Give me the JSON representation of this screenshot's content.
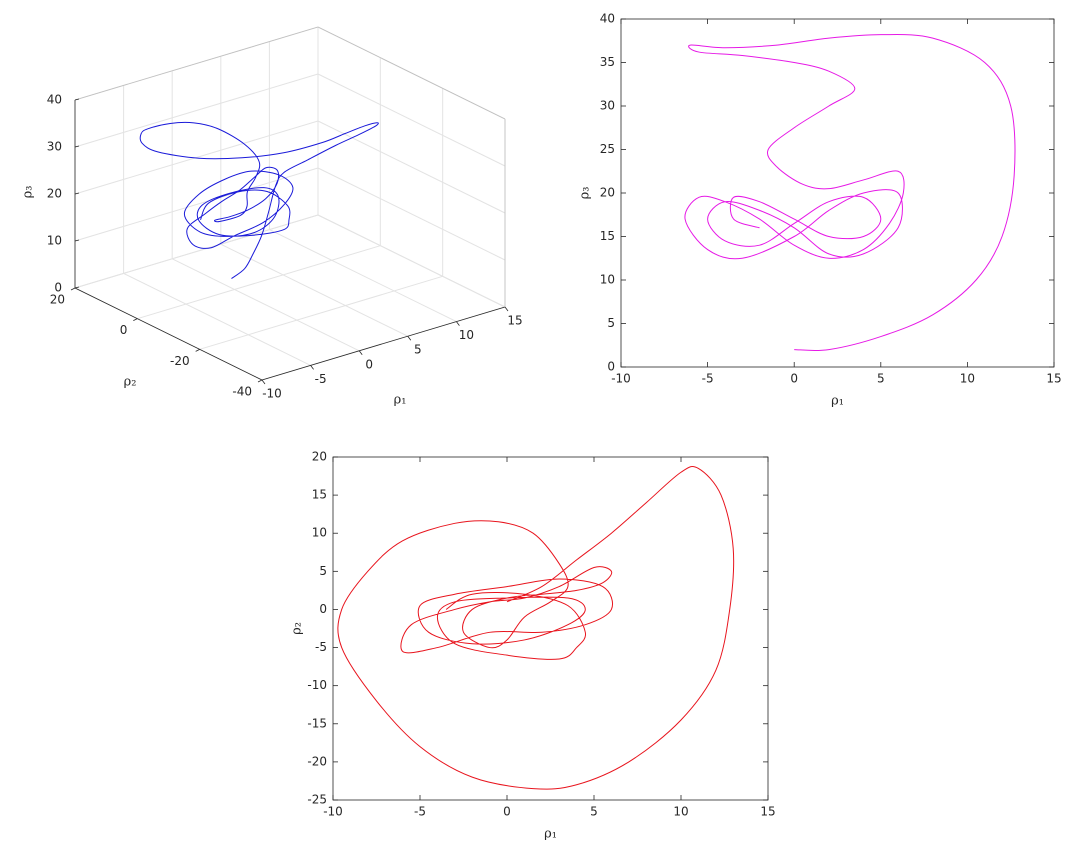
{
  "chart_data": [
    {
      "type": "line3d",
      "color": "#1a1ad9",
      "grid": true,
      "xlabel": "ρ₁",
      "ylabel": "ρ₂",
      "zlabel": "ρ₃",
      "xlim": [
        -10,
        15
      ],
      "ylim": [
        -40,
        20
      ],
      "zlim": [
        0,
        40
      ],
      "xticks": [
        -10,
        -5,
        0,
        5,
        10,
        15
      ],
      "yticks": [
        -40,
        -20,
        0,
        20
      ],
      "zticks": [
        0,
        10,
        20,
        30,
        40
      ],
      "x": [
        0,
        2,
        4,
        6,
        8,
        10,
        11,
        12.3,
        13,
        12.8,
        12,
        10,
        7,
        4,
        1.5,
        -2,
        -5,
        -7.5,
        -9.5,
        -9.5,
        -8,
        -6,
        -3,
        -0.5,
        1.5,
        3,
        3.5,
        2.5,
        1,
        0,
        -1,
        -2.5,
        -2,
        0,
        2,
        4,
        5.5,
        6,
        5,
        3,
        1,
        -1,
        -3,
        -5.5,
        -6,
        -4,
        -1,
        2,
        4.5,
        6,
        5.5,
        3,
        0,
        -3,
        -5,
        -4.5,
        -2,
        1,
        3.5,
        4.5,
        3.5,
        0,
        -3,
        -4,
        -3,
        0,
        3,
        4,
        4.5,
        3.5,
        1,
        -2,
        -3.5
      ],
      "y": [
        1,
        3,
        6.5,
        10,
        14,
        18,
        18.5,
        15,
        8,
        0,
        -8,
        -14.5,
        -20,
        -23,
        -23.5,
        -22,
        -18,
        -12,
        -5,
        0,
        5,
        9,
        11.3,
        11.5,
        10,
        6,
        3,
        1,
        -1,
        -4,
        -5,
        -3,
        0,
        1.5,
        2,
        2.5,
        3.5,
        5,
        5.5,
        3,
        1.5,
        1,
        0,
        -2,
        -5.5,
        -5,
        -3,
        -3,
        -2,
        0,
        3,
        4,
        3,
        2,
        0.5,
        -3,
        -4.5,
        -4,
        -2,
        0,
        1.5,
        1.5,
        1,
        -1,
        -4.5,
        -6,
        -6.5,
        -5,
        -3,
        0.5,
        2,
        2,
        0
      ],
      "z": [
        2,
        2.2,
        3,
        4.5,
        7,
        10,
        12,
        15,
        20,
        25,
        30,
        34,
        37,
        38.2,
        38,
        37.5,
        37,
        36.5,
        36.8,
        37,
        36.5,
        35,
        33.5,
        32,
        30,
        27,
        24,
        22,
        20.5,
        19,
        18,
        17,
        16,
        15,
        15,
        16,
        18,
        20,
        21,
        21,
        20,
        19,
        18,
        17,
        15,
        13,
        13,
        14,
        16,
        18,
        20,
        22,
        22.5,
        21.5,
        19,
        16,
        14,
        13,
        14,
        17,
        19,
        20,
        19.5,
        17.5,
        15,
        13.5,
        13,
        14,
        16,
        18.5,
        19.5,
        19,
        17
      ]
    },
    {
      "type": "line",
      "color": "#e619e6",
      "xlabel": "ρ₁",
      "ylabel": "ρ₃",
      "xlim": [
        -10,
        15
      ],
      "ylim": [
        0,
        40
      ],
      "xticks": [
        -10,
        -5,
        0,
        5,
        10,
        15
      ],
      "yticks": [
        0,
        5,
        10,
        15,
        20,
        25,
        30,
        35,
        40
      ],
      "x": [
        0,
        2,
        5,
        8,
        10.5,
        12,
        12.7,
        12.5,
        11,
        8,
        5,
        2,
        -1,
        -4,
        -6,
        -5.5,
        -3,
        0,
        2,
        3.5,
        2,
        0,
        -1.5,
        -1,
        0.5,
        2,
        4,
        6,
        6.3,
        5.5,
        4,
        2,
        0,
        -2,
        -4,
        -5.5,
        -6.3,
        -5,
        -3,
        0,
        2,
        4,
        6,
        6,
        4,
        2,
        0,
        -2,
        -4,
        -5,
        -4,
        -2,
        0,
        2,
        4,
        5,
        4,
        2,
        0,
        -2,
        -3.5,
        -3.5,
        -2
      ],
      "values": [
        2,
        2,
        3.5,
        6,
        10,
        15,
        22,
        30,
        35,
        37.8,
        38.2,
        37.8,
        37,
        36.7,
        37,
        36.2,
        35.8,
        35,
        34,
        32,
        30,
        27.5,
        25,
        23,
        21,
        20.5,
        21.5,
        22.5,
        20,
        16.5,
        13.5,
        12.5,
        14,
        17,
        19,
        19.5,
        17,
        13.5,
        12.5,
        15,
        18,
        20,
        20,
        16,
        13,
        13,
        16,
        18,
        19,
        17,
        14.5,
        14,
        16.5,
        19,
        19.5,
        17,
        15,
        15,
        17,
        19,
        19.5,
        17,
        16
      ]
    },
    {
      "type": "line",
      "color": "#e8141d",
      "xlabel": "ρ₁",
      "ylabel": "ρ₂",
      "xlim": [
        -10,
        15
      ],
      "ylim": [
        -25,
        20
      ],
      "xticks": [
        -10,
        -5,
        0,
        5,
        10,
        15
      ],
      "yticks": [
        -25,
        -20,
        -15,
        -10,
        -5,
        0,
        5,
        10,
        15,
        20
      ],
      "x": [
        0,
        2,
        4,
        6,
        8,
        10,
        11,
        12.3,
        13,
        12.8,
        12,
        10,
        7,
        4,
        1.5,
        -2,
        -5,
        -7.5,
        -9.5,
        -9.5,
        -8,
        -6,
        -3,
        -0.5,
        1.5,
        3,
        3.5,
        2.5,
        1,
        0,
        -1,
        -2.5,
        -2,
        0,
        2,
        4,
        5.5,
        6,
        5,
        3,
        1,
        -1,
        -3,
        -5.5,
        -6,
        -4,
        -1,
        2,
        4.5,
        6,
        5.5,
        3,
        0,
        -3,
        -5,
        -4.5,
        -2,
        1,
        3.5,
        4.5,
        3.5,
        0,
        -3,
        -4,
        -3,
        0,
        3,
        4,
        4.5,
        3.5,
        1,
        -2,
        -3.5
      ],
      "values": [
        1,
        3,
        6.5,
        10,
        14,
        18,
        18.5,
        15,
        8,
        0,
        -8,
        -14.5,
        -20,
        -23,
        -23.5,
        -22,
        -18,
        -12,
        -5,
        0,
        5,
        9,
        11.3,
        11.5,
        10,
        6,
        3,
        1,
        -1,
        -4,
        -5,
        -3,
        0,
        1.5,
        2,
        2.5,
        3.5,
        5,
        5.5,
        3,
        1.5,
        1,
        0,
        -2,
        -5.5,
        -5,
        -3,
        -3,
        -2,
        0,
        3,
        4,
        3,
        2,
        0.5,
        -3,
        -4.5,
        -4,
        -2,
        0,
        1.5,
        1.5,
        1,
        -1,
        -4.5,
        -6,
        -6.5,
        -5,
        -3,
        0.5,
        2,
        2,
        0
      ]
    }
  ]
}
